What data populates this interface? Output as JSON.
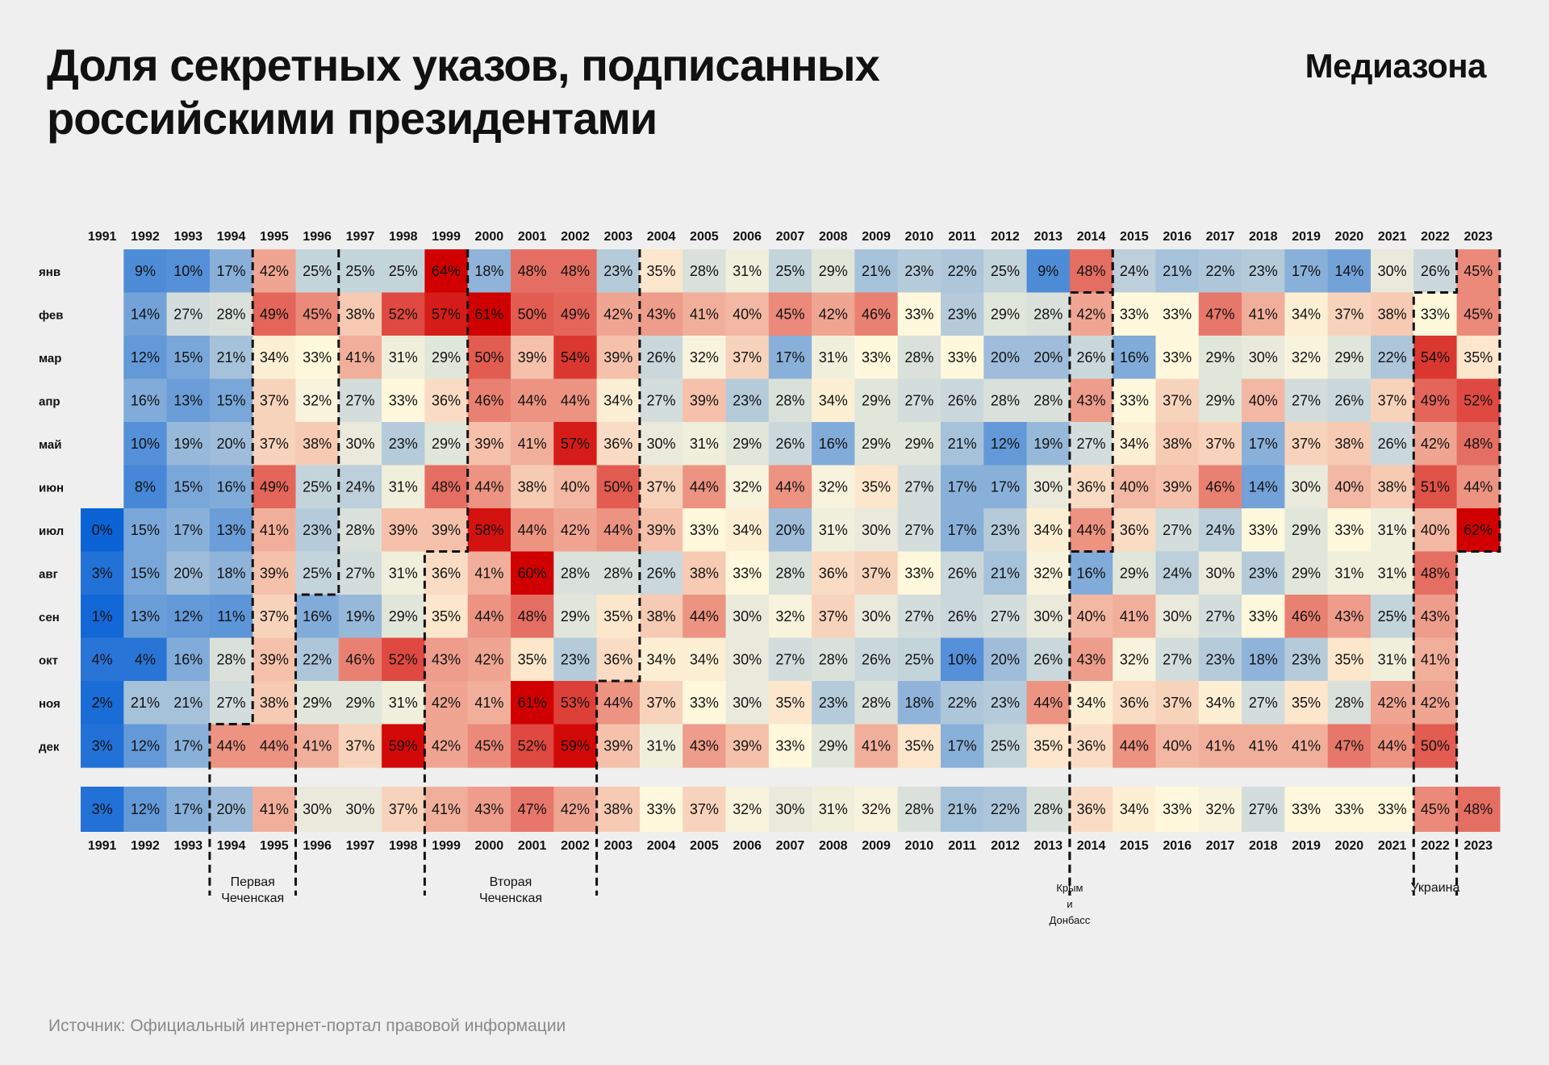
{
  "header": {
    "title": "Доля секретных указов, подписанных российскими президентами",
    "brand": "Медиазона"
  },
  "footer": {
    "source": "Источник: Официальный интернет-портал правовой информации"
  },
  "colors": {
    "background": "#efefef",
    "low": "#0b63d6",
    "mid": "#fff8dc",
    "high": "#d10000"
  },
  "chart_data": {
    "type": "heatmap",
    "x": [
      "1991",
      "1992",
      "1993",
      "1994",
      "1995",
      "1996",
      "1997",
      "1998",
      "1999",
      "2000",
      "2001",
      "2002",
      "2003",
      "2004",
      "2005",
      "2006",
      "2007",
      "2008",
      "2009",
      "2010",
      "2011",
      "2012",
      "2013",
      "2014",
      "2015",
      "2016",
      "2017",
      "2018",
      "2019",
      "2020",
      "2021",
      "2022",
      "2023"
    ],
    "y": [
      "янв",
      "фев",
      "мар",
      "апр",
      "май",
      "июн",
      "июл",
      "авг",
      "сен",
      "окт",
      "ноя",
      "дек"
    ],
    "unit": "%",
    "values": [
      [
        null,
        9,
        10,
        17,
        42,
        25,
        25,
        25,
        64,
        18,
        48,
        48,
        23,
        35,
        28,
        31,
        25,
        29,
        21,
        23,
        22,
        25,
        9,
        48,
        24,
        21,
        22,
        23,
        17,
        14,
        30,
        26,
        45
      ],
      [
        null,
        14,
        27,
        28,
        49,
        45,
        38,
        52,
        57,
        61,
        50,
        49,
        42,
        43,
        41,
        40,
        45,
        42,
        46,
        33,
        23,
        29,
        28,
        42,
        33,
        33,
        47,
        41,
        34,
        37,
        38,
        33,
        45
      ],
      [
        null,
        12,
        15,
        21,
        34,
        33,
        41,
        31,
        29,
        50,
        39,
        54,
        39,
        26,
        32,
        37,
        17,
        31,
        33,
        28,
        33,
        20,
        20,
        26,
        16,
        33,
        29,
        30,
        32,
        29,
        22,
        54,
        35
      ],
      [
        null,
        16,
        13,
        15,
        37,
        32,
        27,
        33,
        36,
        46,
        44,
        44,
        34,
        27,
        39,
        23,
        28,
        34,
        29,
        27,
        26,
        28,
        28,
        43,
        33,
        37,
        29,
        40,
        27,
        26,
        37,
        49,
        52
      ],
      [
        null,
        10,
        19,
        20,
        37,
        38,
        30,
        23,
        29,
        39,
        41,
        57,
        36,
        30,
        31,
        29,
        26,
        16,
        29,
        29,
        21,
        12,
        19,
        27,
        34,
        38,
        37,
        17,
        37,
        38,
        26,
        42,
        48
      ],
      [
        null,
        8,
        15,
        16,
        49,
        25,
        24,
        31,
        48,
        44,
        38,
        40,
        50,
        37,
        44,
        32,
        44,
        32,
        35,
        27,
        17,
        17,
        30,
        36,
        40,
        39,
        46,
        14,
        30,
        40,
        38,
        51,
        44
      ],
      [
        0,
        15,
        17,
        13,
        41,
        23,
        28,
        39,
        39,
        58,
        44,
        42,
        44,
        39,
        33,
        34,
        20,
        31,
        30,
        27,
        17,
        23,
        34,
        44,
        36,
        27,
        24,
        33,
        29,
        33,
        31,
        40,
        62
      ],
      [
        3,
        15,
        20,
        18,
        39,
        25,
        27,
        31,
        36,
        41,
        60,
        28,
        28,
        26,
        38,
        33,
        28,
        36,
        37,
        33,
        26,
        21,
        32,
        16,
        29,
        24,
        30,
        23,
        29,
        31,
        31,
        48,
        null
      ],
      [
        1,
        13,
        12,
        11,
        37,
        16,
        19,
        29,
        35,
        44,
        48,
        29,
        35,
        38,
        44,
        30,
        32,
        37,
        30,
        27,
        26,
        27,
        30,
        40,
        41,
        30,
        27,
        33,
        46,
        43,
        25,
        43,
        null
      ],
      [
        4,
        4,
        16,
        28,
        39,
        22,
        46,
        52,
        43,
        42,
        35,
        23,
        36,
        34,
        34,
        30,
        27,
        28,
        26,
        25,
        10,
        20,
        26,
        43,
        32,
        27,
        23,
        18,
        23,
        35,
        31,
        41,
        null
      ],
      [
        2,
        21,
        21,
        27,
        38,
        29,
        29,
        31,
        42,
        41,
        61,
        53,
        44,
        37,
        33,
        30,
        35,
        23,
        28,
        18,
        22,
        23,
        44,
        34,
        36,
        37,
        34,
        27,
        35,
        28,
        42,
        42,
        null
      ],
      [
        3,
        12,
        17,
        44,
        44,
        41,
        37,
        59,
        42,
        45,
        52,
        59,
        39,
        31,
        43,
        39,
        33,
        29,
        41,
        35,
        17,
        25,
        35,
        36,
        44,
        40,
        41,
        41,
        41,
        47,
        44,
        50,
        null
      ]
    ],
    "annual": [
      3,
      12,
      17,
      20,
      41,
      30,
      30,
      37,
      41,
      43,
      47,
      42,
      38,
      33,
      37,
      32,
      30,
      31,
      32,
      28,
      21,
      22,
      28,
      36,
      34,
      33,
      32,
      27,
      33,
      33,
      33,
      45,
      48
    ],
    "events": [
      {
        "label": [
          "Первая",
          "Чеченская"
        ],
        "start": "1994-12",
        "end": "1996-08"
      },
      {
        "label": [
          "Вторая",
          "Чеченская"
        ],
        "start": "1999-08",
        "end": "2003-10"
      },
      {
        "label": [
          "Крым",
          "и",
          "Донбасс"
        ],
        "start": "2014-02",
        "end": "2014-07"
      },
      {
        "label": [
          "Украина"
        ],
        "start": "2022-02",
        "end": "2023-07"
      }
    ]
  }
}
